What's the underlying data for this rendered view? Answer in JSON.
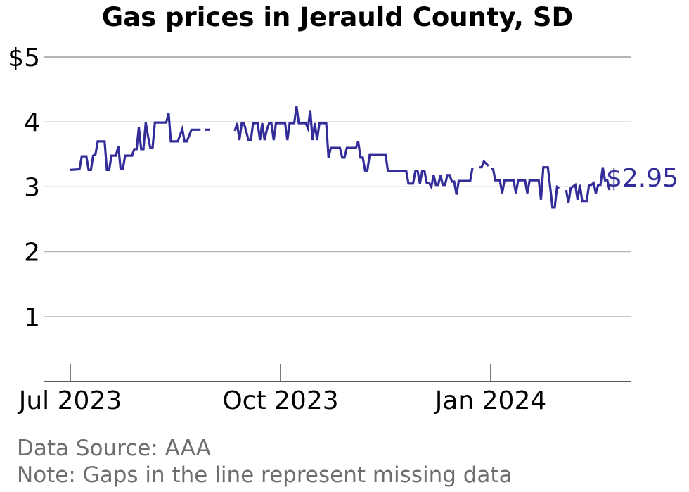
{
  "chart_data": {
    "type": "line",
    "title": "Gas prices in Jerauld County, SD",
    "xlabel": "",
    "ylabel": "",
    "ylim": [
      0,
      5
    ],
    "yticks": [
      1,
      2,
      3,
      4,
      5
    ],
    "ytick_labels": [
      "1",
      "2",
      "3",
      "4",
      "$5"
    ],
    "xticks": [
      {
        "date": "2023-07-01",
        "label": "Jul 2023"
      },
      {
        "date": "2023-10-01",
        "label": "Oct 2023"
      },
      {
        "date": "2024-01-01",
        "label": "Jan 2024"
      }
    ],
    "grid": true,
    "line_color": "#332d9a",
    "grid_color": "#b5b5b5",
    "end_label": "$2.95",
    "segments": [
      [
        [
          "2023-07-01",
          3.26
        ],
        [
          "2023-07-05",
          3.27
        ],
        [
          "2023-07-06",
          3.47
        ],
        [
          "2023-07-08",
          3.47
        ],
        [
          "2023-07-09",
          3.26
        ],
        [
          "2023-07-10",
          3.26
        ],
        [
          "2023-07-11",
          3.48
        ],
        [
          "2023-07-12",
          3.5
        ],
        [
          "2023-07-13",
          3.7
        ],
        [
          "2023-07-16",
          3.7
        ],
        [
          "2023-07-17",
          3.26
        ],
        [
          "2023-07-18",
          3.26
        ],
        [
          "2023-07-19",
          3.48
        ],
        [
          "2023-07-21",
          3.48
        ],
        [
          "2023-07-22",
          3.63
        ],
        [
          "2023-07-23",
          3.28
        ],
        [
          "2023-07-24",
          3.28
        ],
        [
          "2023-07-25",
          3.48
        ],
        [
          "2023-07-28",
          3.48
        ],
        [
          "2023-07-29",
          3.58
        ],
        [
          "2023-07-30",
          3.58
        ],
        [
          "2023-07-31",
          3.92
        ],
        [
          "2023-08-01",
          3.58
        ],
        [
          "2023-08-02",
          3.58
        ],
        [
          "2023-08-03",
          3.99
        ],
        [
          "2023-08-04",
          3.78
        ],
        [
          "2023-08-05",
          3.6
        ],
        [
          "2023-08-06",
          3.6
        ],
        [
          "2023-08-07",
          3.99
        ],
        [
          "2023-08-12",
          3.99
        ],
        [
          "2023-08-13",
          4.14
        ],
        [
          "2023-08-14",
          3.7
        ],
        [
          "2023-08-17",
          3.7
        ],
        [
          "2023-08-19",
          3.89
        ],
        [
          "2023-08-20",
          3.7
        ],
        [
          "2023-08-21",
          3.7
        ],
        [
          "2023-08-23",
          3.88
        ],
        [
          "2023-08-27",
          3.88
        ]
      ],
      [
        [
          "2023-08-29",
          3.88
        ],
        [
          "2023-08-31",
          3.88
        ]
      ],
      [
        [
          "2023-09-11",
          3.86
        ],
        [
          "2023-09-12",
          3.98
        ],
        [
          "2023-09-13",
          3.72
        ],
        [
          "2023-09-14",
          3.98
        ],
        [
          "2023-09-15",
          3.98
        ],
        [
          "2023-09-17",
          3.72
        ],
        [
          "2023-09-18",
          3.72
        ],
        [
          "2023-09-19",
          3.98
        ],
        [
          "2023-09-21",
          3.98
        ],
        [
          "2023-09-22",
          3.72
        ],
        [
          "2023-09-23",
          3.98
        ],
        [
          "2023-09-24",
          3.72
        ],
        [
          "2023-09-25",
          3.88
        ],
        [
          "2023-09-26",
          3.98
        ],
        [
          "2023-09-27",
          3.98
        ],
        [
          "2023-09-28",
          3.72
        ],
        [
          "2023-09-29",
          3.98
        ],
        [
          "2023-10-03",
          3.98
        ],
        [
          "2023-10-04",
          3.72
        ],
        [
          "2023-10-05",
          3.98
        ],
        [
          "2023-10-07",
          3.98
        ],
        [
          "2023-10-08",
          4.24
        ],
        [
          "2023-10-09",
          3.98
        ],
        [
          "2023-10-12",
          3.98
        ],
        [
          "2023-10-13",
          3.9
        ],
        [
          "2023-10-14",
          4.18
        ],
        [
          "2023-10-15",
          3.72
        ],
        [
          "2023-10-16",
          3.98
        ],
        [
          "2023-10-17",
          3.72
        ],
        [
          "2023-10-18",
          3.98
        ],
        [
          "2023-10-21",
          3.98
        ],
        [
          "2023-10-22",
          3.45
        ],
        [
          "2023-10-23",
          3.6
        ],
        [
          "2023-10-27",
          3.6
        ],
        [
          "2023-10-28",
          3.45
        ],
        [
          "2023-10-29",
          3.45
        ],
        [
          "2023-10-30",
          3.6
        ],
        [
          "2023-11-03",
          3.6
        ],
        [
          "2023-11-04",
          3.7
        ],
        [
          "2023-11-05",
          3.45
        ],
        [
          "2023-11-06",
          3.45
        ],
        [
          "2023-11-07",
          3.25
        ],
        [
          "2023-11-08",
          3.25
        ],
        [
          "2023-11-09",
          3.49
        ],
        [
          "2023-11-16",
          3.49
        ],
        [
          "2023-11-17",
          3.24
        ],
        [
          "2023-11-25",
          3.24
        ],
        [
          "2023-11-26",
          3.05
        ],
        [
          "2023-11-28",
          3.05
        ],
        [
          "2023-11-29",
          3.24
        ],
        [
          "2023-11-30",
          3.24
        ],
        [
          "2023-12-01",
          3.05
        ],
        [
          "2023-12-02",
          3.24
        ],
        [
          "2023-12-03",
          3.24
        ],
        [
          "2023-12-04",
          3.06
        ],
        [
          "2023-12-05",
          3.06
        ],
        [
          "2023-12-06",
          3.0
        ],
        [
          "2023-12-07",
          3.18
        ],
        [
          "2023-12-08",
          3.03
        ],
        [
          "2023-12-09",
          3.03
        ],
        [
          "2023-12-10",
          3.18
        ],
        [
          "2023-12-11",
          3.03
        ],
        [
          "2023-12-12",
          3.03
        ],
        [
          "2023-12-13",
          3.18
        ],
        [
          "2023-12-14",
          3.18
        ],
        [
          "2023-12-15",
          3.08
        ],
        [
          "2023-12-16",
          3.08
        ],
        [
          "2023-12-17",
          2.88
        ],
        [
          "2023-12-18",
          3.09
        ],
        [
          "2023-12-23",
          3.09
        ],
        [
          "2023-12-24",
          3.29
        ]
      ],
      [
        [
          "2023-12-27",
          3.3
        ],
        [
          "2023-12-28",
          3.3
        ],
        [
          "2023-12-29",
          3.39
        ],
        [
          "2023-12-31",
          3.32
        ]
      ],
      [
        [
          "2024-01-01",
          3.28
        ],
        [
          "2024-01-02",
          3.28
        ],
        [
          "2024-01-03",
          3.1
        ],
        [
          "2024-01-05",
          3.1
        ],
        [
          "2024-01-06",
          2.9
        ],
        [
          "2024-01-07",
          3.1
        ],
        [
          "2024-01-11",
          3.1
        ],
        [
          "2024-01-12",
          2.9
        ],
        [
          "2024-01-13",
          3.1
        ],
        [
          "2024-01-16",
          3.1
        ],
        [
          "2024-01-17",
          2.9
        ],
        [
          "2024-01-18",
          3.1
        ],
        [
          "2024-01-22",
          3.1
        ],
        [
          "2024-01-23",
          2.8
        ],
        [
          "2024-01-24",
          3.3
        ],
        [
          "2024-01-26",
          3.3
        ],
        [
          "2024-01-27",
          3.0
        ],
        [
          "2024-01-28",
          2.68
        ],
        [
          "2024-01-29",
          2.68
        ],
        [
          "2024-01-30",
          3.0
        ],
        [
          "2024-01-31",
          2.98
        ]
      ],
      [
        [
          "2024-02-03",
          2.95
        ],
        [
          "2024-02-04",
          2.75
        ],
        [
          "2024-02-05",
          2.98
        ],
        [
          "2024-02-07",
          3.03
        ],
        [
          "2024-02-08",
          2.8
        ],
        [
          "2024-02-09",
          3.03
        ],
        [
          "2024-02-10",
          2.78
        ],
        [
          "2024-02-12",
          2.78
        ],
        [
          "2024-02-13",
          3.03
        ],
        [
          "2024-02-14",
          3.03
        ],
        [
          "2024-02-15",
          3.06
        ],
        [
          "2024-02-16",
          2.9
        ],
        [
          "2024-02-17",
          3.03
        ],
        [
          "2024-02-18",
          3.03
        ],
        [
          "2024-02-19",
          3.3
        ],
        [
          "2024-02-20",
          3.1
        ],
        [
          "2024-02-21",
          3.1
        ],
        [
          "2024-02-22",
          2.95
        ]
      ]
    ]
  },
  "footer": {
    "source": "Data Source: AAA",
    "note": "Note: Gaps in the line represent missing data"
  }
}
